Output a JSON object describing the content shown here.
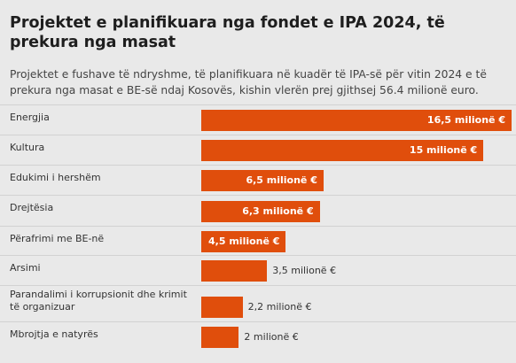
{
  "title": "Projektet e planifikuara nga fondet e IPA 2024, të prekura nga masat",
  "subtitle": "Projektet e fushave të ndryshme, të planifikuara në kuadër të IPA-së për vitin 2024 e të prekura nga masat e BE-së ndaj Kosovës, kishin vlerën prej gjithsej 56.4 milionë euro.",
  "chart_data": {
    "type": "bar",
    "orientation": "horizontal",
    "bar_color": "#e04e0c",
    "categories": [
      "Energjia",
      "Kultura",
      "Edukimi i hershëm",
      "Drejtësia",
      "Përafrimi me BE-në",
      "Arsimi",
      "Parandalimi i korrupsionit dhe krimit të organizuar",
      "Mbrojtja e natyrës"
    ],
    "values": [
      16.5,
      15,
      6.5,
      6.3,
      4.5,
      3.5,
      2.2,
      2
    ],
    "value_labels": [
      "16,5 milionë €",
      "15 milionë €",
      "6,5 milionë €",
      "6,3 milionë €",
      "4,5 milionë €",
      "3,5 milionë €",
      "2,2 milionë €",
      "2 milionë €"
    ],
    "unit": "milionë €"
  }
}
